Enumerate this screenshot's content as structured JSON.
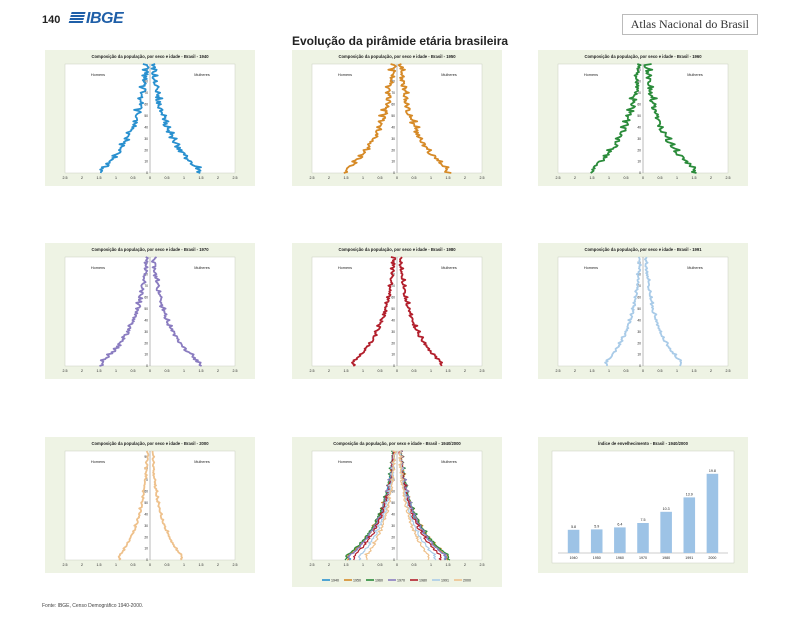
{
  "header": {
    "page_number": "140",
    "logo": "IBGE",
    "atlas_title": "Atlas Nacional do Brasil"
  },
  "main_title": "Evolução da pirâmide etária brasileira",
  "source": "Fonte: IBGE, Censo Demográfico 1940-2000.",
  "labels": {
    "men": "Homens",
    "women": "Mulheres"
  },
  "chart_data": [
    {
      "type": "line",
      "title": "Composição da população, por sexo e idade - Brasil - 1940",
      "color": "#2990cf",
      "x_ticks": [
        "2.5",
        "2",
        "1.5",
        "1",
        "0.5",
        "0",
        "0.5",
        "1",
        "1.5",
        "2",
        "2.5"
      ],
      "y_ticks": [
        "0",
        "10",
        "20",
        "30",
        "40",
        "50",
        "60",
        "70",
        "80",
        "90"
      ],
      "base": 1.55,
      "noise": 0.12
    },
    {
      "type": "line",
      "title": "Composição da população, por sexo e idade - Brasil - 1950",
      "color": "#d68a27",
      "x_ticks": [
        "2.5",
        "2",
        "1.5",
        "1",
        "0.5",
        "0",
        "0.5",
        "1",
        "1.5",
        "2",
        "2.5"
      ],
      "y_ticks": [
        "0",
        "10",
        "20",
        "30",
        "40",
        "50",
        "60",
        "70",
        "80",
        "90"
      ],
      "base": 1.6,
      "noise": 0.12
    },
    {
      "type": "line",
      "title": "Composição da população, por sexo e idade - Brasil - 1960",
      "color": "#2a8b3a",
      "x_ticks": [
        "2.5",
        "2",
        "1.5",
        "1",
        "0.5",
        "0",
        "0.5",
        "1",
        "1.5",
        "2",
        "2.5"
      ],
      "y_ticks": [
        "0",
        "10",
        "20",
        "30",
        "40",
        "50",
        "60",
        "70",
        "80",
        "90"
      ],
      "base": 1.65,
      "noise": 0.12
    },
    {
      "type": "line",
      "title": "Composição da população, por sexo e idade - Brasil - 1970",
      "color": "#8a7cc0",
      "x_ticks": [
        "2.5",
        "2",
        "1.5",
        "1",
        "0.5",
        "0",
        "0.5",
        "1",
        "1.5",
        "2",
        "2.5"
      ],
      "y_ticks": [
        "0",
        "10",
        "20",
        "30",
        "40",
        "50",
        "60",
        "70",
        "80",
        "90"
      ],
      "base": 1.55,
      "noise": 0.09
    },
    {
      "type": "line",
      "title": "Composição da população, por sexo e idade - Brasil - 1980",
      "color": "#b21e2b",
      "x_ticks": [
        "2.5",
        "2",
        "1.5",
        "1",
        "0.5",
        "0",
        "0.5",
        "1",
        "1.5",
        "2",
        "2.5"
      ],
      "y_ticks": [
        "0",
        "10",
        "20",
        "30",
        "40",
        "50",
        "60",
        "70",
        "80",
        "90"
      ],
      "base": 1.4,
      "noise": 0.07
    },
    {
      "type": "line",
      "title": "Composição da população, por sexo e idade - Brasil - 1991",
      "color": "#a9cbe8",
      "x_ticks": [
        "2.5",
        "2",
        "1.5",
        "1",
        "0.5",
        "0",
        "0.5",
        "1",
        "1.5",
        "2",
        "2.5"
      ],
      "y_ticks": [
        "0",
        "10",
        "20",
        "30",
        "40",
        "50",
        "60",
        "70",
        "80",
        "90"
      ],
      "base": 1.2,
      "noise": 0.05
    },
    {
      "type": "line",
      "title": "Composição da população, por sexo e idade - Brasil - 2000",
      "color": "#eec18c",
      "x_ticks": [
        "2.5",
        "2",
        "1.5",
        "1",
        "0.5",
        "0",
        "0.5",
        "1",
        "1.5",
        "2",
        "2.5"
      ],
      "y_ticks": [
        "0",
        "10",
        "20",
        "30",
        "40",
        "50",
        "60",
        "70",
        "80",
        "90"
      ],
      "base": 1.0,
      "noise": 0.04
    },
    {
      "type": "line",
      "title": "Composição da população, por sexo e idade - Brasil - 1940/2000",
      "x_ticks": [
        "2.5",
        "2",
        "1.5",
        "1",
        "0.5",
        "0",
        "0.5",
        "1",
        "1.5",
        "2",
        "2.5"
      ],
      "y_ticks": [
        "0",
        "10",
        "20",
        "30",
        "40",
        "50",
        "60",
        "70",
        "80",
        "90"
      ],
      "series": [
        {
          "name": "1940",
          "color": "#2990cf",
          "base": 1.55
        },
        {
          "name": "1950",
          "color": "#d68a27",
          "base": 1.6
        },
        {
          "name": "1960",
          "color": "#2a8b3a",
          "base": 1.65
        },
        {
          "name": "1970",
          "color": "#8a7cc0",
          "base": 1.55
        },
        {
          "name": "1980",
          "color": "#b21e2b",
          "base": 1.4
        },
        {
          "name": "1991",
          "color": "#a9cbe8",
          "base": 1.2
        },
        {
          "name": "2000",
          "color": "#eec18c",
          "base": 1.0
        }
      ]
    },
    {
      "type": "bar",
      "title": "Índice de envelhecimento - Brasil - 1940/2000",
      "color": "#9dc3e6",
      "categories": [
        "1940",
        "1950",
        "1960",
        "1970",
        "1980",
        "1991",
        "2000"
      ],
      "values": [
        5.8,
        5.9,
        6.4,
        7.5,
        10.3,
        13.9,
        19.8
      ],
      "value_labels": [
        "5.8",
        "5.9",
        "6.4",
        "7.5",
        "10.3",
        "13.9",
        "19.8"
      ],
      "ylim": [
        0,
        22
      ]
    }
  ]
}
